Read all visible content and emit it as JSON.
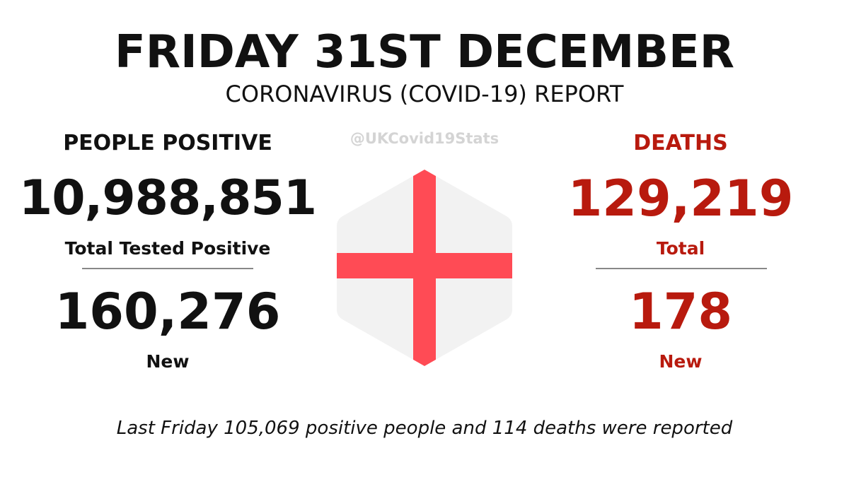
{
  "header": {
    "title": "FRIDAY 31ST DECEMBER",
    "subtitle": "CORONAVIRUS (COVID-19) REPORT",
    "handle": "@UKCovid19Stats"
  },
  "positive": {
    "heading": "PEOPLE POSITIVE",
    "total_value": "10,988,851",
    "total_label": "Total Tested Positive",
    "new_value": "160,276",
    "new_label": "New",
    "color": "#111111"
  },
  "deaths": {
    "heading": "DEATHS",
    "total_value": "129,219",
    "total_label": "Total",
    "new_value": "178",
    "new_label": "New",
    "color": "#b81a0e"
  },
  "flag": {
    "icon": "england-flag-icon",
    "background_color": "#f2f2f2",
    "cross_color": "#ff4b55"
  },
  "footer": {
    "text": "Last Friday 105,069 positive people and 114 deaths were reported"
  }
}
